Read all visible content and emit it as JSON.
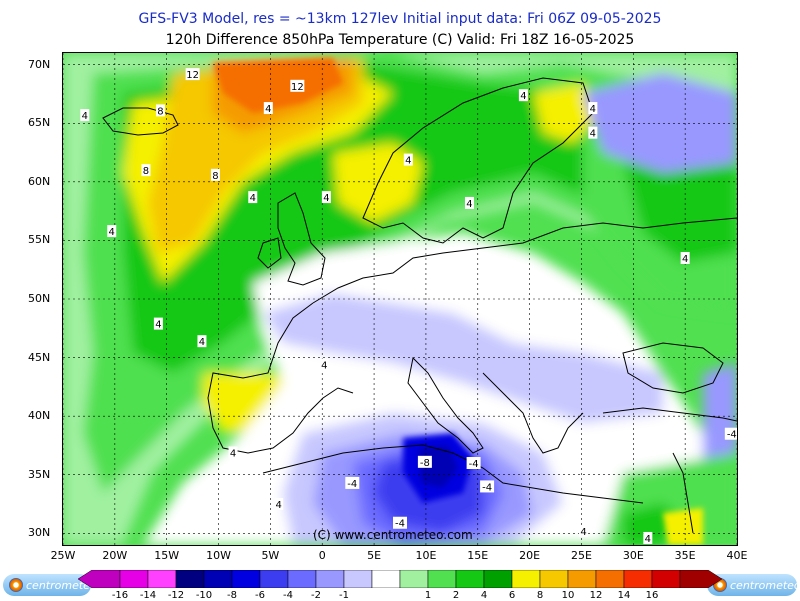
{
  "header": {
    "line1": "GFS-FV3 Model, res = ~13km 127lev   Initial input data: Fri 06Z 09-05-2025",
    "line2": "120h Difference 850hPa Temperature (C)  Valid: Fri 18Z 16-05-2025"
  },
  "map": {
    "lat_labels": [
      "70N",
      "65N",
      "60N",
      "55N",
      "50N",
      "45N",
      "40N",
      "35N",
      "30N"
    ],
    "lon_labels": [
      "25W",
      "20W",
      "15W",
      "10W",
      "5W",
      "0",
      "5E",
      "10E",
      "15E",
      "20E",
      "25E",
      "30E",
      "35E",
      "40E"
    ],
    "lon_range": [
      -25,
      40
    ],
    "lat_range": [
      29,
      71
    ],
    "copyright": "(C) www.centrometeo.com",
    "contour_labels": [
      {
        "text": "12",
        "lon": -12.5,
        "lat": 69.2
      },
      {
        "text": "12",
        "lon": -2.4,
        "lat": 68.2
      },
      {
        "text": "8",
        "lon": -15.6,
        "lat": 66.1
      },
      {
        "text": "4",
        "lon": -22.9,
        "lat": 65.7
      },
      {
        "text": "8",
        "lon": -17.0,
        "lat": 61.0
      },
      {
        "text": "8",
        "lon": -10.3,
        "lat": 60.6
      },
      {
        "text": "4",
        "lon": -5.2,
        "lat": 66.3
      },
      {
        "text": "4",
        "lon": -6.7,
        "lat": 58.7
      },
      {
        "text": "4",
        "lon": 0.4,
        "lat": 58.7
      },
      {
        "text": "4",
        "lon": 8.3,
        "lat": 61.9
      },
      {
        "text": "4",
        "lon": 14.2,
        "lat": 58.2
      },
      {
        "text": "4",
        "lon": 19.4,
        "lat": 67.4
      },
      {
        "text": "4",
        "lon": 26.1,
        "lat": 66.3
      },
      {
        "text": "4",
        "lon": 26.1,
        "lat": 64.2
      },
      {
        "text": "4",
        "lon": -20.3,
        "lat": 55.8
      },
      {
        "text": "4",
        "lon": -15.8,
        "lat": 47.9
      },
      {
        "text": "4",
        "lon": -11.6,
        "lat": 46.4
      },
      {
        "text": "4",
        "lon": 0.2,
        "lat": 44.4
      },
      {
        "text": "4",
        "lon": -8.6,
        "lat": 36.9
      },
      {
        "text": "4",
        "lon": -4.2,
        "lat": 32.5
      },
      {
        "text": "4",
        "lon": 35.0,
        "lat": 53.5
      },
      {
        "text": "4",
        "lon": 25.2,
        "lat": 30.2
      },
      {
        "text": "4",
        "lon": 31.4,
        "lat": 29.6
      },
      {
        "text": "-8",
        "lon": 9.9,
        "lat": 36.1
      },
      {
        "text": "-4",
        "lon": 14.6,
        "lat": 36.0
      },
      {
        "text": "-4",
        "lon": 2.9,
        "lat": 34.3
      },
      {
        "text": "-4",
        "lon": 15.9,
        "lat": 34.0
      },
      {
        "text": "-4",
        "lon": 7.5,
        "lat": 30.9
      },
      {
        "text": "-4",
        "lon": 39.5,
        "lat": 38.5
      }
    ]
  },
  "legend": {
    "labels": [
      "-16",
      "-14",
      "-12",
      "-10",
      "-8",
      "-6",
      "-4",
      "-2",
      "-1",
      "1",
      "2",
      "4",
      "6",
      "8",
      "10",
      "12",
      "14",
      "16"
    ],
    "colors": [
      "#bf00bf",
      "#e600e6",
      "#ff40ff",
      "#000080",
      "#0000b4",
      "#0000e0",
      "#3c3cf0",
      "#6b6bff",
      "#9898ff",
      "#c8c8ff",
      "#ffffff",
      "#a0f0a0",
      "#50e050",
      "#14c814",
      "#00a000",
      "#f5f000",
      "#f5c800",
      "#f59b00",
      "#f56e00",
      "#f52d00",
      "#d20000",
      "#a00000"
    ],
    "left_logo": "centrometeo",
    "right_logo": "centrometeo"
  }
}
